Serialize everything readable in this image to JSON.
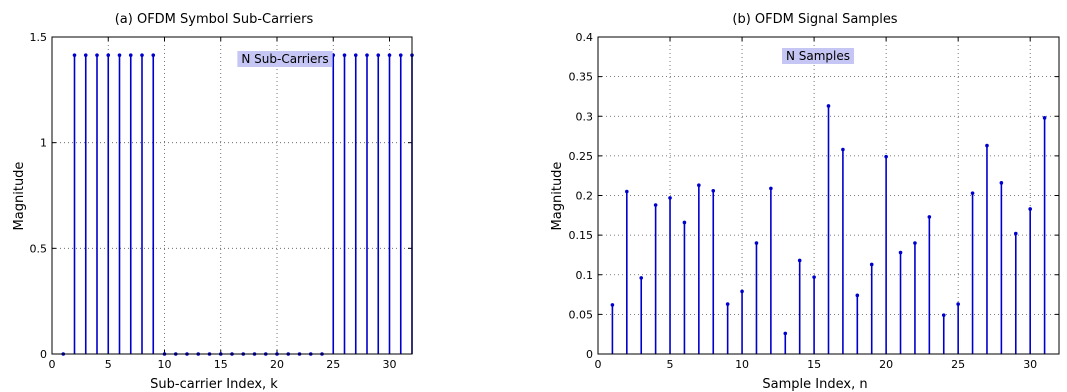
{
  "chart_data": [
    {
      "type": "stem",
      "title": "(a) OFDM Symbol Sub-Carriers",
      "xlabel": "Sub-carrier Index, k",
      "ylabel": "Magnitude",
      "xlim": [
        0,
        32
      ],
      "ylim": [
        0,
        1.5
      ],
      "xticks": [
        0,
        5,
        10,
        15,
        20,
        25,
        30
      ],
      "yticks": [
        0,
        0.5,
        1,
        1.5
      ],
      "ytick_labels": [
        "0",
        "0.5",
        "1",
        "1.5"
      ],
      "grid": true,
      "annotation": "N Sub-Carriers",
      "color": "#0000cc",
      "x": [
        1,
        2,
        3,
        4,
        5,
        6,
        7,
        8,
        9,
        10,
        11,
        12,
        13,
        14,
        15,
        16,
        17,
        18,
        19,
        20,
        21,
        22,
        23,
        24,
        25,
        26,
        27,
        28,
        29,
        30,
        31,
        32
      ],
      "values": [
        0,
        1.414,
        1.414,
        1.414,
        1.414,
        1.414,
        1.414,
        1.414,
        1.414,
        0,
        0,
        0,
        0,
        0,
        0,
        0,
        0,
        0,
        0,
        0,
        0,
        0,
        0,
        0,
        1.414,
        1.414,
        1.414,
        1.414,
        1.414,
        1.414,
        1.414,
        1.414
      ]
    },
    {
      "type": "stem",
      "title": "(b) OFDM Signal Samples",
      "xlabel": "Sample Index, n",
      "ylabel": "Magnitude",
      "xlim": [
        0,
        32
      ],
      "ylim": [
        0,
        0.4
      ],
      "xticks": [
        0,
        5,
        10,
        15,
        20,
        25,
        30
      ],
      "yticks": [
        0,
        0.05,
        0.1,
        0.15,
        0.2,
        0.25,
        0.3,
        0.35,
        0.4
      ],
      "ytick_labels": [
        "0",
        "0.05",
        "0.1",
        "0.15",
        "0.2",
        "0.25",
        "0.3",
        "0.35",
        "0.4"
      ],
      "grid": true,
      "annotation": "N Samples",
      "color": "#0000cc",
      "x": [
        1,
        2,
        3,
        4,
        5,
        6,
        7,
        8,
        9,
        10,
        11,
        12,
        13,
        14,
        15,
        16,
        17,
        18,
        19,
        20,
        21,
        22,
        23,
        24,
        25,
        26,
        27,
        28,
        29,
        30,
        31
      ],
      "values": [
        0.062,
        0.205,
        0.096,
        0.188,
        0.197,
        0.166,
        0.213,
        0.206,
        0.063,
        0.079,
        0.14,
        0.209,
        0.026,
        0.118,
        0.097,
        0.313,
        0.258,
        0.074,
        0.113,
        0.249,
        0.128,
        0.14,
        0.173,
        0.049,
        0.063,
        0.203,
        0.263,
        0.216,
        0.152,
        0.183,
        0.298
      ]
    }
  ]
}
